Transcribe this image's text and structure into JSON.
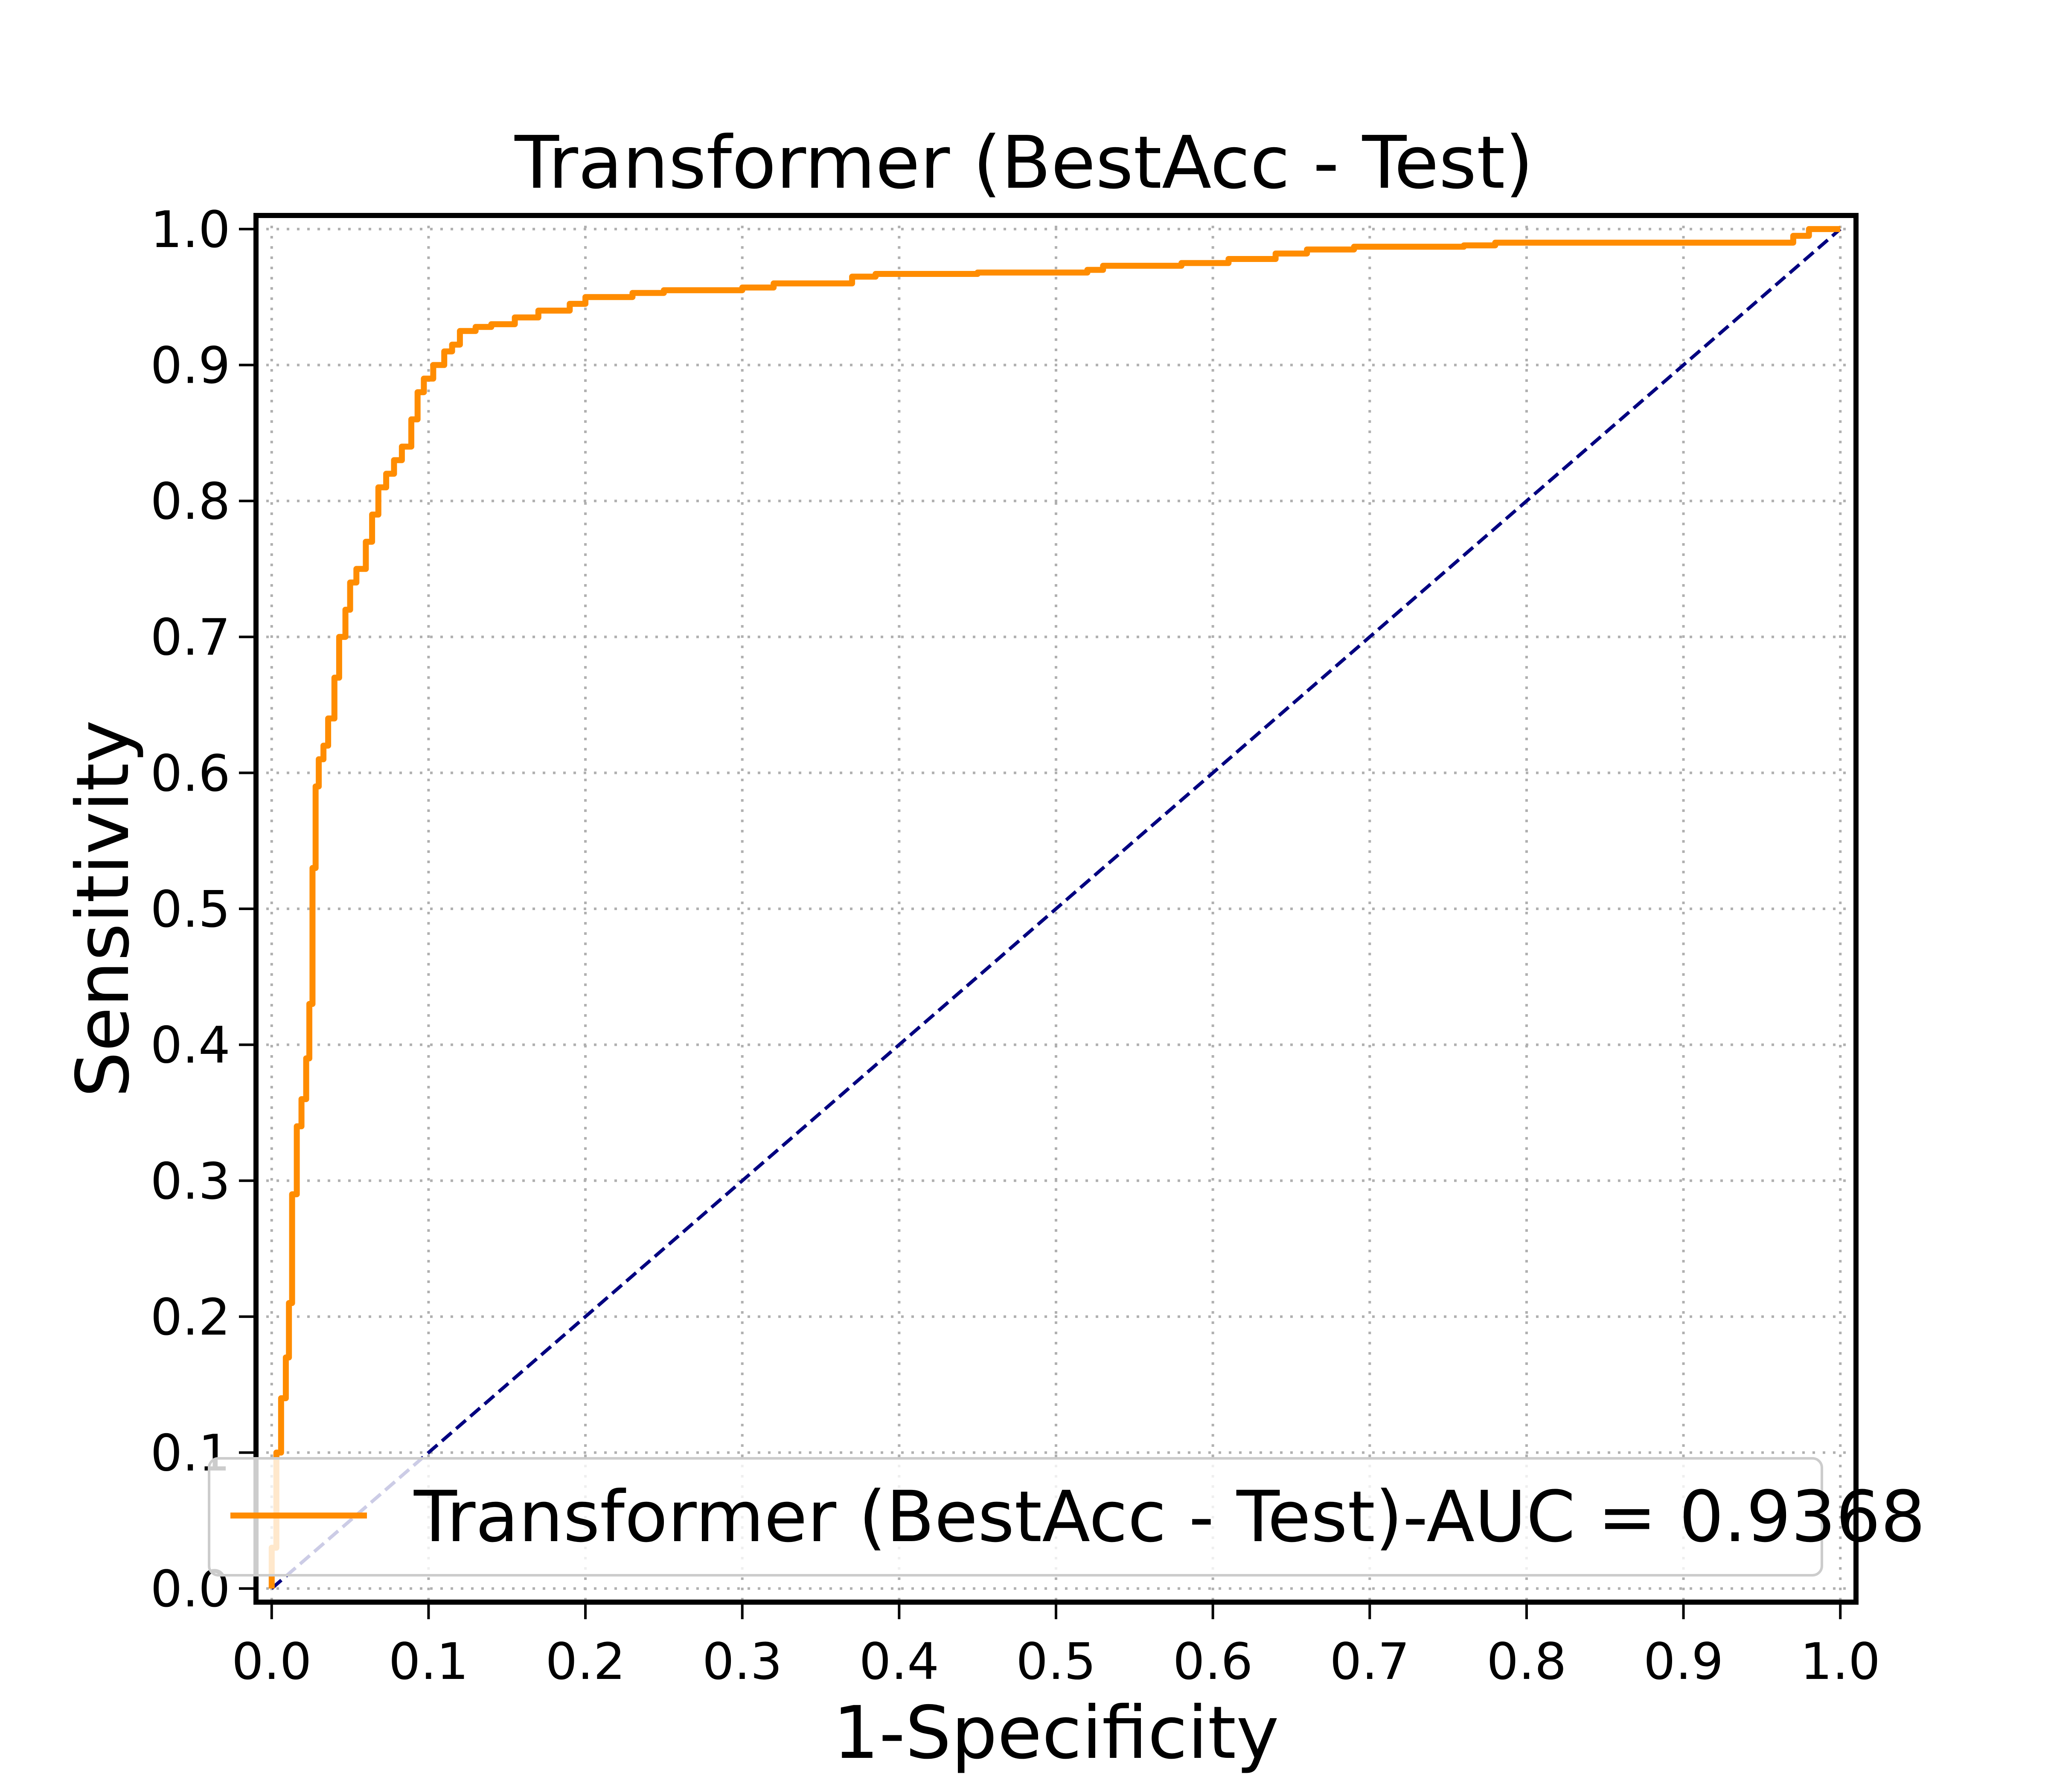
{
  "chart_data": {
    "type": "line",
    "title": "Transformer (BestAcc - Test)",
    "xlabel": "1-Specificity",
    "ylabel": "Sensitivity",
    "xlim": [
      -0.01,
      1.01
    ],
    "ylim": [
      -0.01,
      1.01
    ],
    "xticks": [
      0.0,
      0.1,
      0.2,
      0.3,
      0.4,
      0.5,
      0.6,
      0.7,
      0.8,
      0.9,
      1.0
    ],
    "yticks": [
      0.0,
      0.1,
      0.2,
      0.3,
      0.4,
      0.5,
      0.6,
      0.7,
      0.8,
      0.9,
      1.0
    ],
    "xtick_labels": [
      "0.0",
      "0.1",
      "0.2",
      "0.3",
      "0.4",
      "0.5",
      "0.6",
      "0.7",
      "0.8",
      "0.9",
      "1.0"
    ],
    "ytick_labels": [
      "0.0",
      "0.1",
      "0.2",
      "0.3",
      "0.4",
      "0.5",
      "0.6",
      "0.7",
      "0.8",
      "0.9",
      "1.0"
    ],
    "grid": true,
    "legend_position": "lower-right",
    "series": [
      {
        "name": "Transformer (BestAcc - Test)-AUC = 0.9368",
        "color": "#ff8c00",
        "x": [
          0.0,
          0.0,
          0.003,
          0.003,
          0.006,
          0.006,
          0.009,
          0.009,
          0.011,
          0.011,
          0.013,
          0.013,
          0.016,
          0.016,
          0.019,
          0.019,
          0.022,
          0.022,
          0.024,
          0.024,
          0.026,
          0.026,
          0.028,
          0.028,
          0.03,
          0.03,
          0.033,
          0.033,
          0.036,
          0.036,
          0.04,
          0.04,
          0.043,
          0.043,
          0.047,
          0.047,
          0.05,
          0.05,
          0.054,
          0.054,
          0.06,
          0.06,
          0.064,
          0.064,
          0.068,
          0.068,
          0.073,
          0.073,
          0.078,
          0.078,
          0.083,
          0.083,
          0.089,
          0.089,
          0.093,
          0.093,
          0.097,
          0.097,
          0.103,
          0.103,
          0.11,
          0.11,
          0.115,
          0.115,
          0.12,
          0.12,
          0.13,
          0.13,
          0.14,
          0.14,
          0.155,
          0.155,
          0.17,
          0.17,
          0.19,
          0.19,
          0.2,
          0.2,
          0.23,
          0.23,
          0.25,
          0.25,
          0.3,
          0.3,
          0.32,
          0.32,
          0.37,
          0.37,
          0.385,
          0.385,
          0.45,
          0.45,
          0.52,
          0.52,
          0.53,
          0.53,
          0.58,
          0.58,
          0.61,
          0.61,
          0.64,
          0.64,
          0.66,
          0.66,
          0.69,
          0.69,
          0.76,
          0.76,
          0.78,
          0.78,
          0.97,
          0.97,
          0.98,
          0.98,
          1.0
        ],
        "y": [
          0.0,
          0.03,
          0.03,
          0.1,
          0.1,
          0.14,
          0.14,
          0.17,
          0.17,
          0.21,
          0.21,
          0.29,
          0.29,
          0.34,
          0.34,
          0.36,
          0.36,
          0.39,
          0.39,
          0.43,
          0.43,
          0.53,
          0.53,
          0.59,
          0.59,
          0.61,
          0.61,
          0.62,
          0.62,
          0.64,
          0.64,
          0.67,
          0.67,
          0.7,
          0.7,
          0.72,
          0.72,
          0.74,
          0.74,
          0.75,
          0.75,
          0.77,
          0.77,
          0.79,
          0.79,
          0.81,
          0.81,
          0.82,
          0.82,
          0.83,
          0.83,
          0.84,
          0.84,
          0.86,
          0.86,
          0.88,
          0.88,
          0.89,
          0.89,
          0.9,
          0.9,
          0.91,
          0.91,
          0.915,
          0.915,
          0.925,
          0.925,
          0.928,
          0.928,
          0.93,
          0.93,
          0.935,
          0.935,
          0.94,
          0.94,
          0.945,
          0.945,
          0.95,
          0.95,
          0.953,
          0.953,
          0.955,
          0.955,
          0.957,
          0.957,
          0.96,
          0.96,
          0.965,
          0.965,
          0.967,
          0.967,
          0.968,
          0.968,
          0.97,
          0.97,
          0.973,
          0.973,
          0.975,
          0.975,
          0.978,
          0.978,
          0.982,
          0.982,
          0.985,
          0.985,
          0.987,
          0.987,
          0.988,
          0.988,
          0.99,
          0.99,
          0.995,
          0.995,
          1.0,
          1.0
        ]
      },
      {
        "color": "#000080",
        "style": "dashed",
        "x": [
          0.0,
          1.0
        ],
        "y": [
          0.0,
          1.0
        ]
      }
    ]
  }
}
